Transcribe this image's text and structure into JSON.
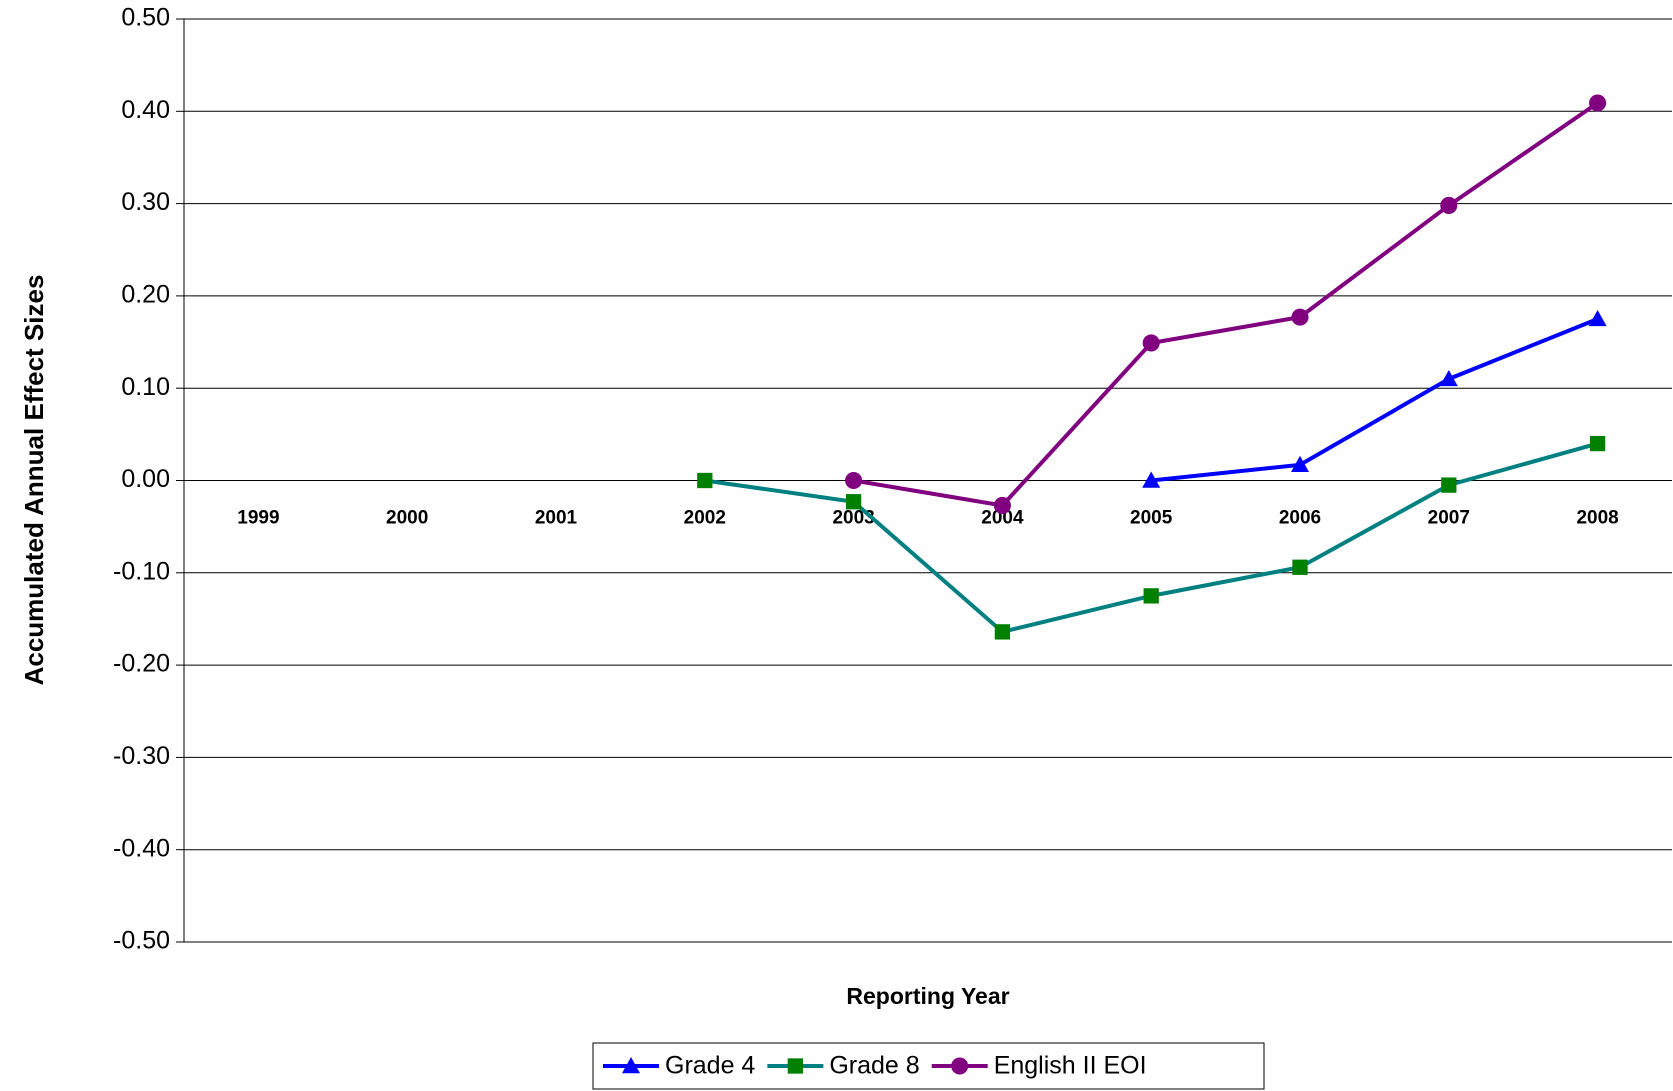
{
  "chart_data": {
    "type": "line",
    "y_axis_label": "Accumulated Annual Effect Sizes",
    "x_axis_label": "Reporting Year",
    "categories": [
      "1999",
      "2000",
      "2001",
      "2002",
      "2003",
      "2004",
      "2005",
      "2006",
      "2007",
      "2008"
    ],
    "series": [
      {
        "name": "Grade 4",
        "color": "#0000ff",
        "marker_color": "#0000ff",
        "marker": "triangle",
        "values": [
          null,
          null,
          null,
          null,
          null,
          null,
          0.0,
          0.017,
          0.11,
          0.175
        ]
      },
      {
        "name": "Grade 8",
        "color": "#008080",
        "marker_color": "#008000",
        "marker": "square",
        "values": [
          null,
          null,
          null,
          0.0,
          -0.023,
          -0.164,
          -0.125,
          -0.094,
          -0.005,
          0.04
        ]
      },
      {
        "name": "English II EOI",
        "color": "#800080",
        "marker_color": "#800080",
        "marker": "circle",
        "values": [
          null,
          null,
          null,
          null,
          0.0,
          -0.027,
          0.149,
          0.177,
          0.298,
          0.409
        ]
      }
    ],
    "ylim": [
      -0.5,
      0.5
    ],
    "yticks": [
      {
        "value": -0.5,
        "label": "-0.50"
      },
      {
        "value": -0.4,
        "label": "-0.40"
      },
      {
        "value": -0.3,
        "label": "-0.30"
      },
      {
        "value": -0.2,
        "label": "-0.20"
      },
      {
        "value": -0.1,
        "label": "-0.10"
      },
      {
        "value": 0.0,
        "label": "0.00"
      },
      {
        "value": 0.1,
        "label": "0.10"
      },
      {
        "value": 0.2,
        "label": "0.20"
      },
      {
        "value": 0.3,
        "label": "0.30"
      },
      {
        "value": 0.4,
        "label": "0.40"
      },
      {
        "value": 0.5,
        "label": "0.50"
      }
    ],
    "grid": true,
    "legend": "bottom"
  }
}
